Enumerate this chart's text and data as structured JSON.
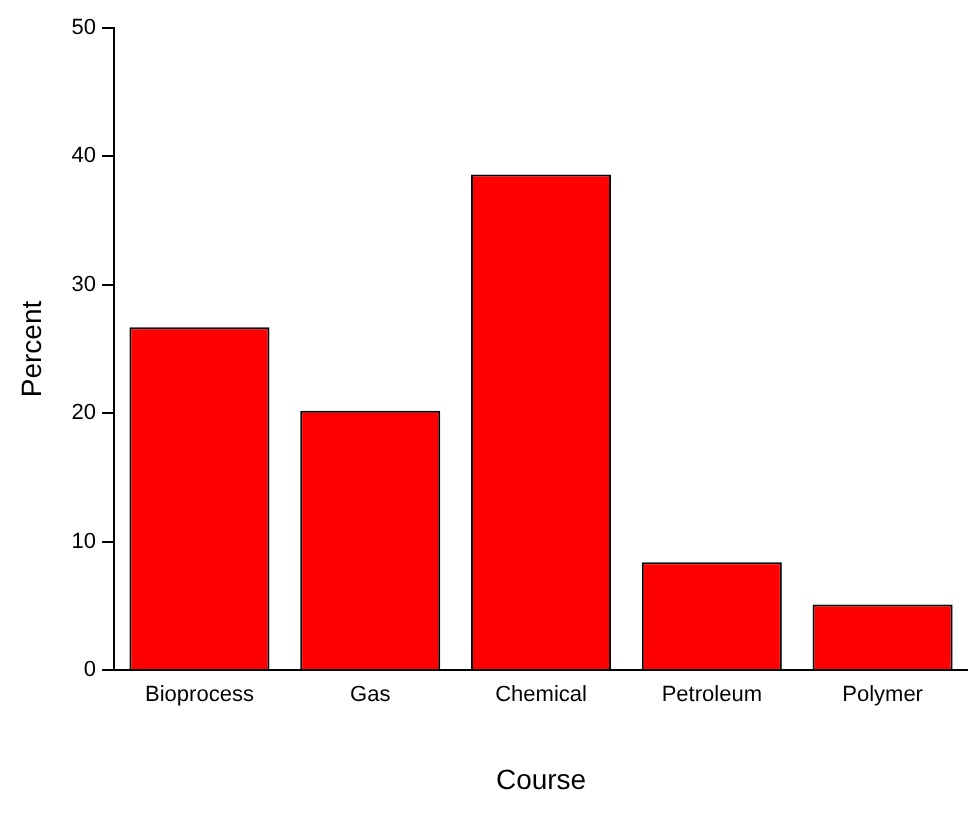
{
  "chart_data": {
    "type": "bar",
    "xlabel": "Course",
    "ylabel": "Percent",
    "categories": [
      "Bioprocess",
      "Gas",
      "Chemical",
      "Petroleum",
      "Polymer"
    ],
    "values": [
      26.7,
      20.2,
      38.6,
      8.4,
      5.1
    ],
    "color": "#ff0000",
    "ylim": [
      0,
      50
    ],
    "yticks": [
      0,
      10,
      20,
      30,
      40,
      50
    ],
    "grid": false,
    "legend": false
  }
}
